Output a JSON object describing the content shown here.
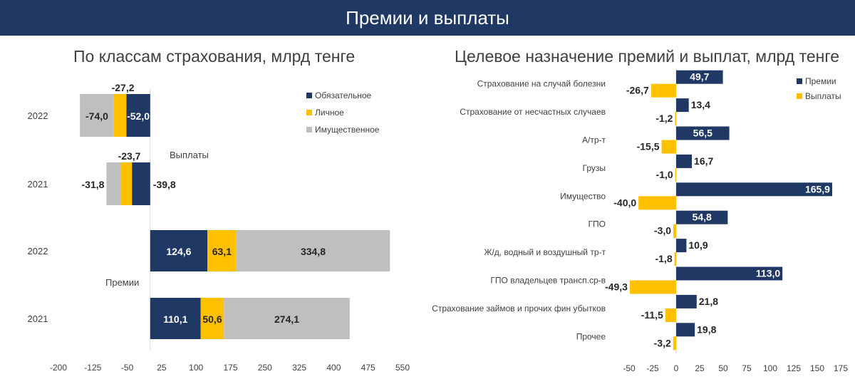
{
  "header": {
    "title": "Премии и выплаты"
  },
  "colors": {
    "navy": "#1F3864",
    "gold": "#FFC000",
    "gray": "#BFBFBF",
    "axis": "#D9D9D9",
    "text": "#404040"
  },
  "chart_data": [
    {
      "type": "bar",
      "orientation": "horizontal",
      "stacked": true,
      "title": "По классам страхования, млрд тенге",
      "group_labels": [
        "Выплаты",
        "Премии"
      ],
      "categories": [
        "2022",
        "2021",
        "2022",
        "2021"
      ],
      "category_groups": [
        "Выплаты",
        "Выплаты",
        "Премии",
        "Премии"
      ],
      "series": [
        {
          "name": "Обязательное",
          "color": "#1F3864",
          "values": [
            -52.0,
            -39.8,
            124.6,
            110.1
          ]
        },
        {
          "name": "Личное",
          "color": "#FFC000",
          "values": [
            -27.2,
            -23.7,
            63.1,
            50.6
          ]
        },
        {
          "name": "Имущественное",
          "color": "#BFBFBF",
          "values": [
            -74.0,
            -31.8,
            334.8,
            274.1
          ]
        }
      ],
      "data_labels": [
        [
          "-52,0",
          "-39,8",
          "124,6",
          "110,1"
        ],
        [
          "-27,2",
          "-23,7",
          "63,1",
          "50,6"
        ],
        [
          "-74,0",
          "-31,8",
          "334,8",
          "274,1"
        ]
      ],
      "xlim": [
        -200,
        550
      ],
      "xticks": [
        "-200",
        "-125",
        "-50",
        "25",
        "100",
        "175",
        "250",
        "325",
        "400",
        "475",
        "550"
      ],
      "legend_position": "top-right",
      "grid": false
    },
    {
      "type": "bar",
      "orientation": "horizontal",
      "title": "Целевое назначение премий и выплат, млрд тенге",
      "categories": [
        "Страхование на случай болезни",
        "Страхование от несчастных случаев",
        "А/тр-т",
        "Грузы",
        "Имущество",
        "ГПО",
        "Ж/д, водный и воздушный тр-т",
        "ГПО владельцев трансп.ср-в",
        "Страхование займов и прочих фин убытков",
        "Прочее"
      ],
      "series": [
        {
          "name": "Премии",
          "color": "#1F3864",
          "values": [
            49.7,
            13.4,
            56.5,
            16.7,
            165.9,
            54.8,
            10.9,
            113.0,
            21.8,
            19.8
          ],
          "labels": [
            "49,7",
            "13,4",
            "56,5",
            "16,7",
            "165,9",
            "54,8",
            "10,9",
            "113,0",
            "21,8",
            "19,8"
          ]
        },
        {
          "name": "Выплаты",
          "color": "#FFC000",
          "values": [
            -26.7,
            -1.2,
            -15.5,
            -1.0,
            -40.0,
            -3.0,
            -1.8,
            -49.3,
            -11.5,
            -3.2
          ],
          "labels": [
            "-26,7",
            "-1,2",
            "-15,5",
            "-1,0",
            "-40,0",
            "-3,0",
            "-1,8",
            "-49,3",
            "-11,5",
            "-3,2"
          ]
        }
      ],
      "xlim": [
        -50,
        175
      ],
      "xticks": [
        "-50",
        "-25",
        "0",
        "25",
        "50",
        "75",
        "100",
        "125",
        "150",
        "175"
      ],
      "legend_position": "top-right",
      "grid": false
    }
  ]
}
